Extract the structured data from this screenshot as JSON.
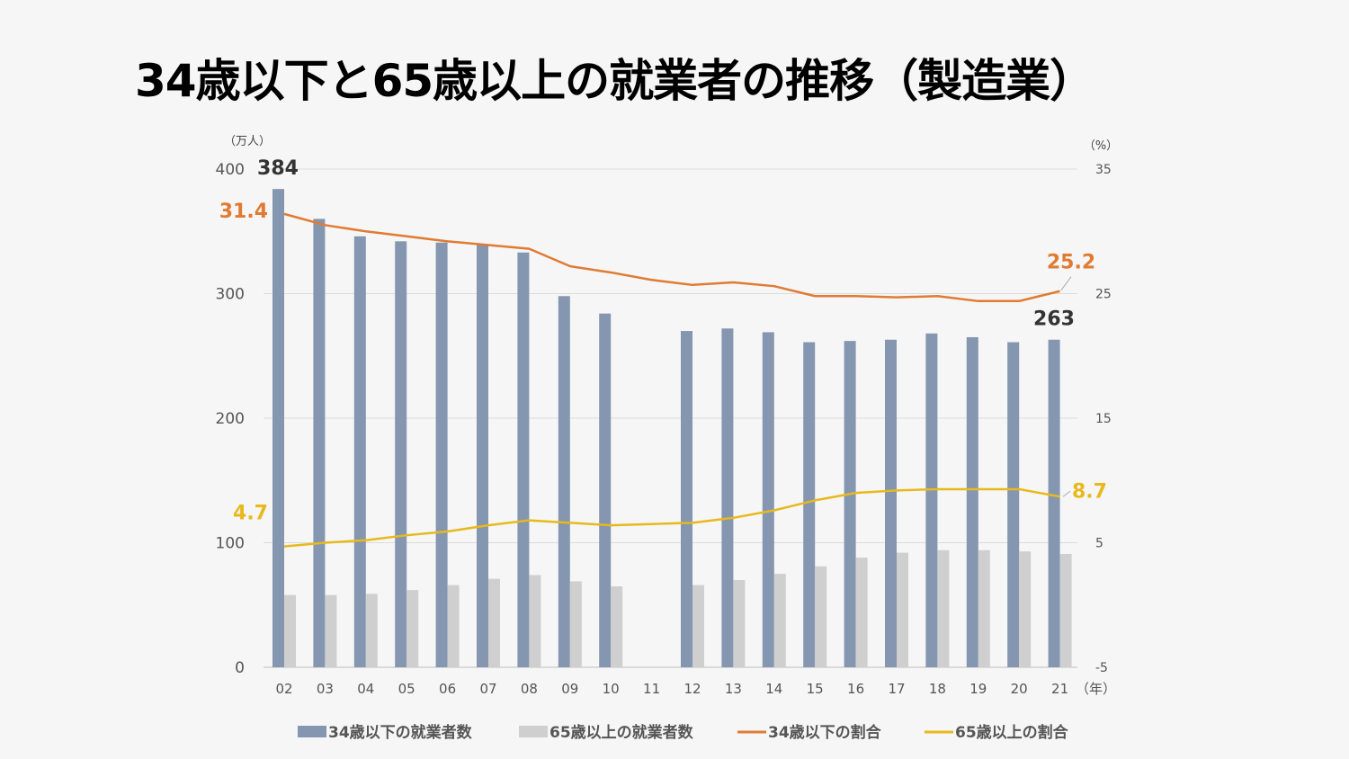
{
  "title": "34歳以下と65歳以上の就業者の推移（製造業）",
  "chart_data": {
    "type": "bar",
    "categories": [
      "02",
      "03",
      "04",
      "05",
      "06",
      "07",
      "08",
      "09",
      "10",
      "11",
      "12",
      "13",
      "14",
      "15",
      "16",
      "17",
      "18",
      "19",
      "20",
      "21"
    ],
    "x_unit": "（年）",
    "y_left": {
      "unit": "（万人）",
      "ylim": [
        0,
        400
      ],
      "ticks": [
        "0",
        "100",
        "200",
        "300",
        "400"
      ]
    },
    "y_right": {
      "unit": "（%）",
      "ylim": [
        -5,
        35
      ],
      "ticks": [
        "-5",
        "5",
        "15",
        "25",
        "35"
      ]
    },
    "series": [
      {
        "name": "34歳以下の就業者数",
        "kind": "bar",
        "axis": "left",
        "color": "#8496b0",
        "values": [
          384,
          360,
          346,
          342,
          341,
          339,
          333,
          298,
          284,
          null,
          270,
          272,
          269,
          261,
          262,
          263,
          268,
          265,
          261,
          263
        ]
      },
      {
        "name": "65歳以上の就業者数",
        "kind": "bar",
        "axis": "left",
        "color": "#cfcfcf",
        "values": [
          58,
          58,
          59,
          62,
          66,
          71,
          74,
          69,
          65,
          null,
          66,
          70,
          75,
          81,
          88,
          92,
          94,
          94,
          93,
          91
        ]
      },
      {
        "name": "34歳以下の割合",
        "kind": "line",
        "axis": "right",
        "color": "#e07b33",
        "values": [
          31.4,
          30.5,
          30.0,
          29.6,
          29.2,
          28.9,
          28.6,
          27.2,
          26.7,
          26.1,
          25.7,
          25.9,
          25.6,
          24.8,
          24.8,
          24.7,
          24.8,
          24.4,
          24.4,
          25.2
        ]
      },
      {
        "name": "65歳以上の割合",
        "kind": "line",
        "axis": "right",
        "color": "#e8b91d",
        "values": [
          4.7,
          5.0,
          5.2,
          5.6,
          5.9,
          6.4,
          6.8,
          6.6,
          6.4,
          6.5,
          6.6,
          7.0,
          7.6,
          8.4,
          9.0,
          9.2,
          9.3,
          9.3,
          9.3,
          8.7
        ]
      }
    ],
    "data_labels": [
      {
        "text": "384",
        "series": 0,
        "index": 0
      },
      {
        "text": "263",
        "series": 0,
        "index": 19
      },
      {
        "text": "31.4",
        "series": 2,
        "index": 0
      },
      {
        "text": "25.2",
        "series": 2,
        "index": 19
      },
      {
        "text": "4.7",
        "series": 3,
        "index": 0
      },
      {
        "text": "8.7",
        "series": 3,
        "index": 19
      }
    ],
    "legend_position": "bottom",
    "grid": "horizontal"
  }
}
